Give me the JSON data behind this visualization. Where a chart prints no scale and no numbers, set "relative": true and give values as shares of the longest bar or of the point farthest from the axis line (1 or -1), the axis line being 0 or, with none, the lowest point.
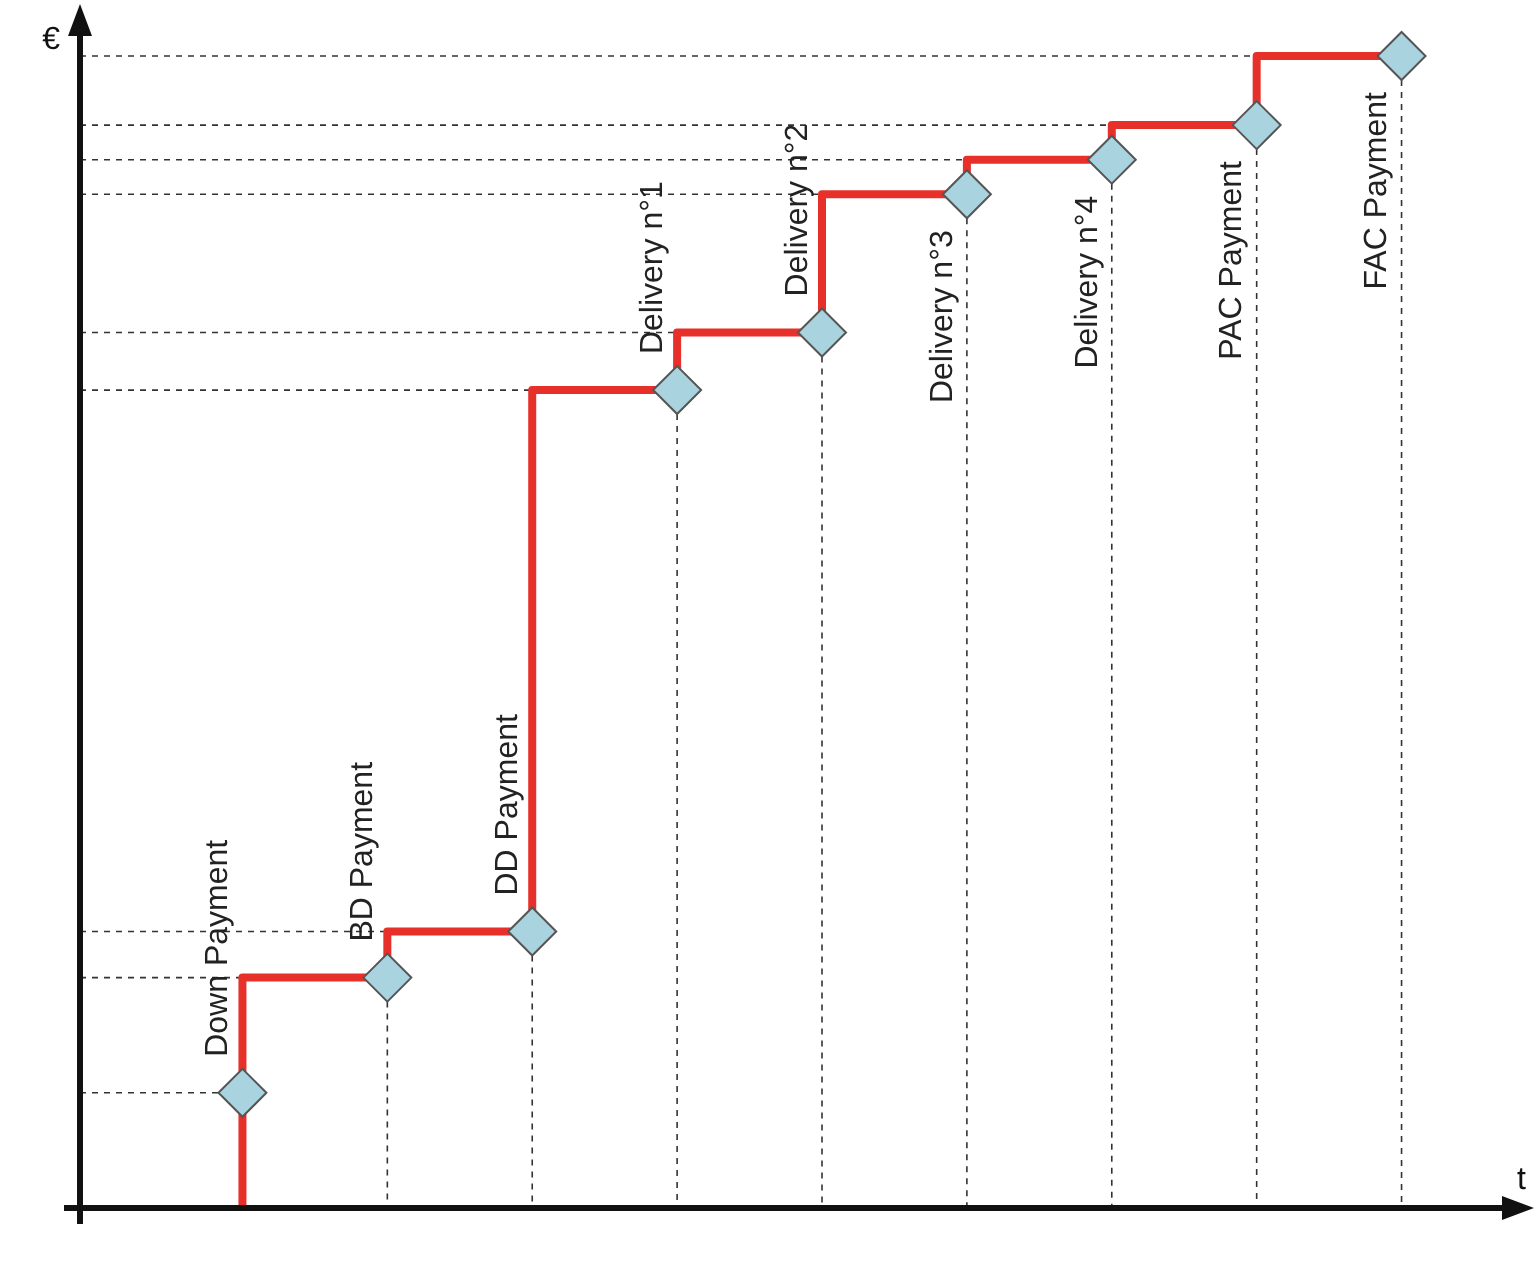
{
  "chart_data": {
    "type": "step",
    "xlabel": "t",
    "ylabel": "€",
    "relative": true,
    "grid": "x",
    "legend": false,
    "marker": "diamond",
    "line_style": "solid",
    "categories": [
      null,
      null,
      null,
      null,
      null,
      null,
      null,
      null,
      null
    ],
    "series": [
      {
        "color": "#e8302a",
        "values": [
          0.1,
          0.2,
          0.24,
          0.71,
          0.76,
          0.88,
          0.91,
          0.94,
          1
        ]
      }
    ],
    "annotations": [
      {
        "text": "Down Payment",
        "y": 0.1
      },
      {
        "text": "BD Payment",
        "y": 0.2
      },
      {
        "text": "DD Payment",
        "y": 0.24
      },
      {
        "text": "Delivery n°1",
        "y": 0.71
      },
      {
        "text": "Delivery n°2",
        "y": 0.76
      },
      {
        "text": "Delivery n°3",
        "y": 0.88
      },
      {
        "text": "Delivery n°4",
        "y": 0.91
      },
      {
        "text": "PAC Payment",
        "y": 0.94
      },
      {
        "text": "FAC Payment",
        "y": 1
      }
    ]
  }
}
